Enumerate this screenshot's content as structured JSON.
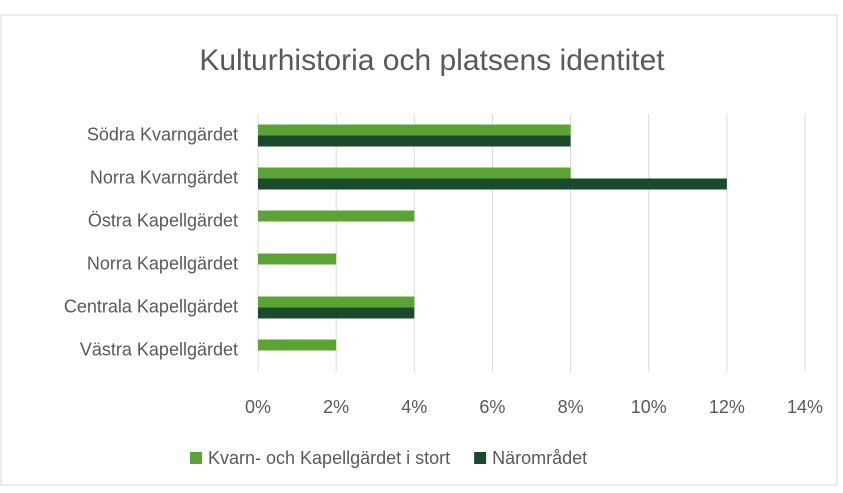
{
  "chart_data": {
    "type": "bar",
    "orientation": "horizontal",
    "title": "Kulturhistoria och platsens identitet",
    "categories": [
      "Södra Kvarngärdet",
      "Norra Kvarngärdet",
      "Östra Kapellgärdet",
      "Norra Kapellgärdet",
      "Centrala Kapellgärdet",
      "Västra Kapellgärdet"
    ],
    "series": [
      {
        "name": "Kvarn- och Kapellgärdet i stort",
        "color": "#5ba333",
        "values": [
          8,
          8,
          4,
          2,
          4,
          2
        ]
      },
      {
        "name": "Närområdet",
        "color": "#1a4a2c",
        "values": [
          8,
          12,
          0,
          0,
          4,
          0
        ]
      }
    ],
    "xlim": [
      0,
      14
    ],
    "xticks": [
      {
        "value": 0,
        "label": "0%"
      },
      {
        "value": 2,
        "label": "2%"
      },
      {
        "value": 4,
        "label": "4%"
      },
      {
        "value": 6,
        "label": "6%"
      },
      {
        "value": 8,
        "label": "8%"
      },
      {
        "value": 10,
        "label": "10%"
      },
      {
        "value": 12,
        "label": "12%"
      },
      {
        "value": 14,
        "label": "14%"
      }
    ],
    "grid": true,
    "legend": "bottom"
  }
}
